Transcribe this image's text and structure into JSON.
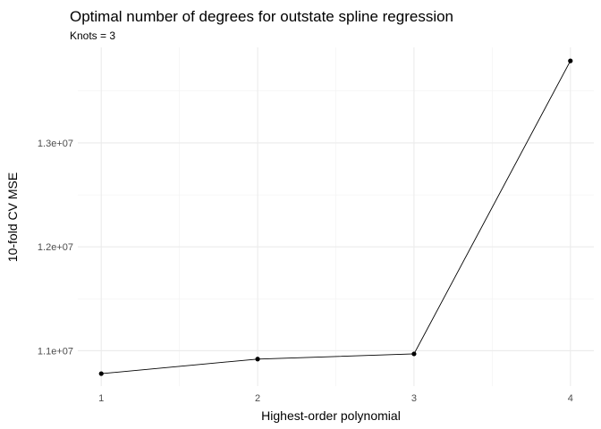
{
  "chart_data": {
    "type": "line",
    "title": "Optimal number of degrees for outstate spline regression",
    "subtitle": "Knots = 3",
    "xlabel": "Highest-order polynomial",
    "ylabel": "10-fold CV MSE",
    "x": [
      1,
      2,
      3,
      4
    ],
    "x_tick_labels": [
      "1",
      "2",
      "3",
      "4"
    ],
    "y_ticks": [
      11000000,
      12000000,
      13000000
    ],
    "y_tick_labels": [
      "1.1e+07",
      "1.2e+07",
      "1.3e+07"
    ],
    "series": [
      {
        "values": [
          10780000,
          10920000,
          10970000,
          13790000
        ]
      }
    ],
    "xlim": [
      0.85,
      4.15
    ],
    "ylim": [
      10660000,
      13920000
    ],
    "grid": true,
    "legend": "none"
  }
}
